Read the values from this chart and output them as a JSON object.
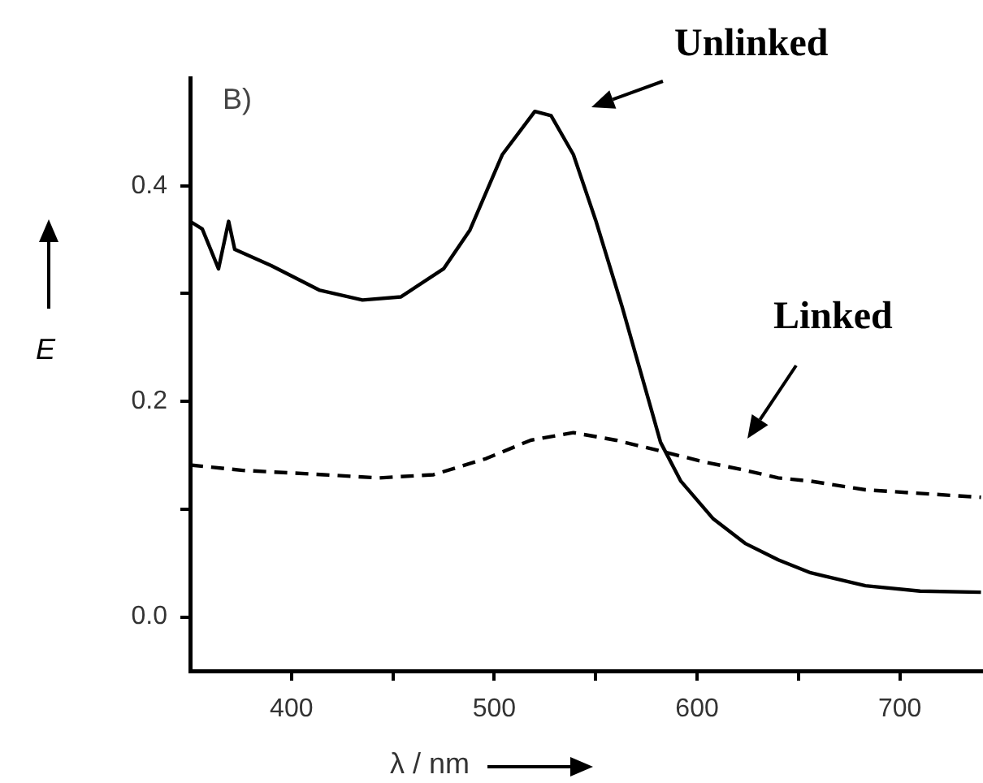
{
  "chart_data": {
    "type": "line",
    "xlabel": "λ / nm",
    "ylabel": "E",
    "annotations": [
      "B)"
    ],
    "xlim": [
      350,
      741
    ],
    "xticks": [
      400,
      {
        "value": 450,
        "label": null
      },
      500,
      {
        "value": 550,
        "label": null
      },
      600,
      {
        "value": 650,
        "label": null
      },
      700
    ],
    "ylim": [
      -0.05,
      0.5
    ],
    "yticks": [
      {
        "value": 0,
        "label": "0.0"
      },
      {
        "value": 0.1,
        "label": null
      },
      {
        "value": 0.2,
        "label": "0.2"
      },
      {
        "value": 0.3,
        "label": null
      },
      {
        "value": 0.4,
        "label": "0.4"
      }
    ],
    "grid": false,
    "legend": false,
    "marker": "none",
    "series": [
      {
        "name": "Unlinked",
        "color": "#000000",
        "line_style": "solid",
        "x": [
          350,
          356,
          364,
          369,
          372,
          390,
          414,
          435,
          454,
          475,
          488,
          504,
          520,
          528,
          539,
          550,
          563,
          576,
          582,
          592,
          608,
          624,
          640,
          656,
          683,
          710,
          740
        ],
        "values": [
          0.367,
          0.36,
          0.323,
          0.367,
          0.341,
          0.326,
          0.303,
          0.294,
          0.297,
          0.323,
          0.359,
          0.429,
          0.469,
          0.465,
          0.429,
          0.368,
          0.288,
          0.202,
          0.162,
          0.126,
          0.091,
          0.068,
          0.053,
          0.041,
          0.029,
          0.024,
          0.023
        ]
      },
      {
        "name": "Linked",
        "color": "#000000",
        "line_style": "dashed",
        "x": [
          350,
          376,
          416,
          443,
          470,
          496,
          518,
          539,
          560,
          582,
          603,
          624,
          640,
          656,
          683,
          740
        ],
        "values": [
          0.141,
          0.136,
          0.132,
          0.129,
          0.132,
          0.147,
          0.164,
          0.171,
          0.164,
          0.154,
          0.144,
          0.136,
          0.129,
          0.126,
          0.118,
          0.111
        ]
      }
    ]
  }
}
